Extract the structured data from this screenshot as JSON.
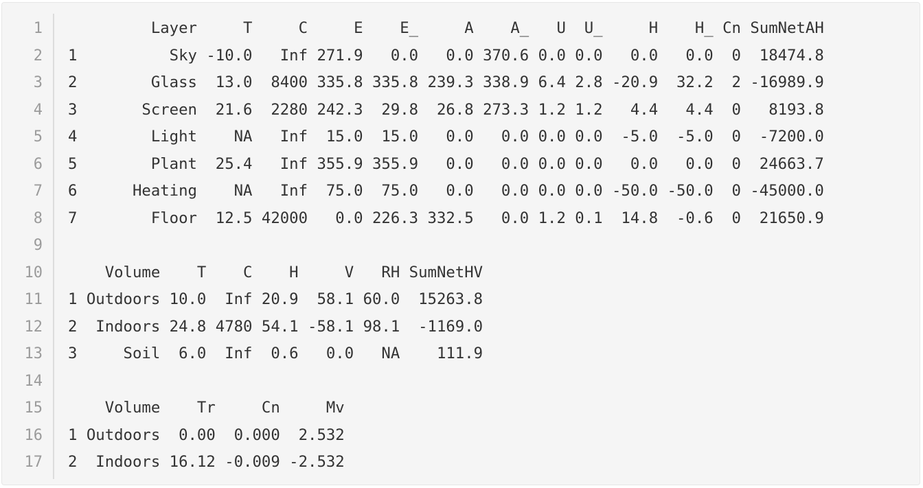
{
  "code_block": {
    "line_numbers": [
      "1",
      "2",
      "3",
      "4",
      "5",
      "6",
      "7",
      "8",
      "9",
      "10",
      "11",
      "12",
      "13",
      "14",
      "15",
      "16",
      "17"
    ],
    "lines": [
      "         Layer     T     C     E    E_     A    A_   U  U_     H    H_ Cn SumNetAH",
      "1          Sky -10.0   Inf 271.9   0.0   0.0 370.6 0.0 0.0   0.0   0.0  0  18474.8",
      "2        Glass  13.0  8400 335.8 335.8 239.3 338.9 6.4 2.8 -20.9  32.2  2 -16989.9",
      "3       Screen  21.6  2280 242.3  29.8  26.8 273.3 1.2 1.2   4.4   4.4  0   8193.8",
      "4        Light    NA   Inf  15.0  15.0   0.0   0.0 0.0 0.0  -5.0  -5.0  0  -7200.0",
      "5        Plant  25.4   Inf 355.9 355.9   0.0   0.0 0.0 0.0   0.0   0.0  0  24663.7",
      "6      Heating    NA   Inf  75.0  75.0   0.0   0.0 0.0 0.0 -50.0 -50.0  0 -45000.0",
      "7        Floor  12.5 42000   0.0 226.3 332.5   0.0 1.2 0.1  14.8  -0.6  0  21650.9",
      "",
      "    Volume    T    C    H     V   RH SumNetHV",
      "1 Outdoors 10.0  Inf 20.9  58.1 60.0  15263.8",
      "2  Indoors 24.8 4780 54.1 -58.1 98.1  -1169.0",
      "3     Soil  6.0  Inf  0.6   0.0   NA    111.9",
      "",
      "    Volume    Tr     Cn     Mv",
      "1 Outdoors  0.00  0.000  2.532",
      "2  Indoors 16.12 -0.009 -2.532"
    ]
  }
}
